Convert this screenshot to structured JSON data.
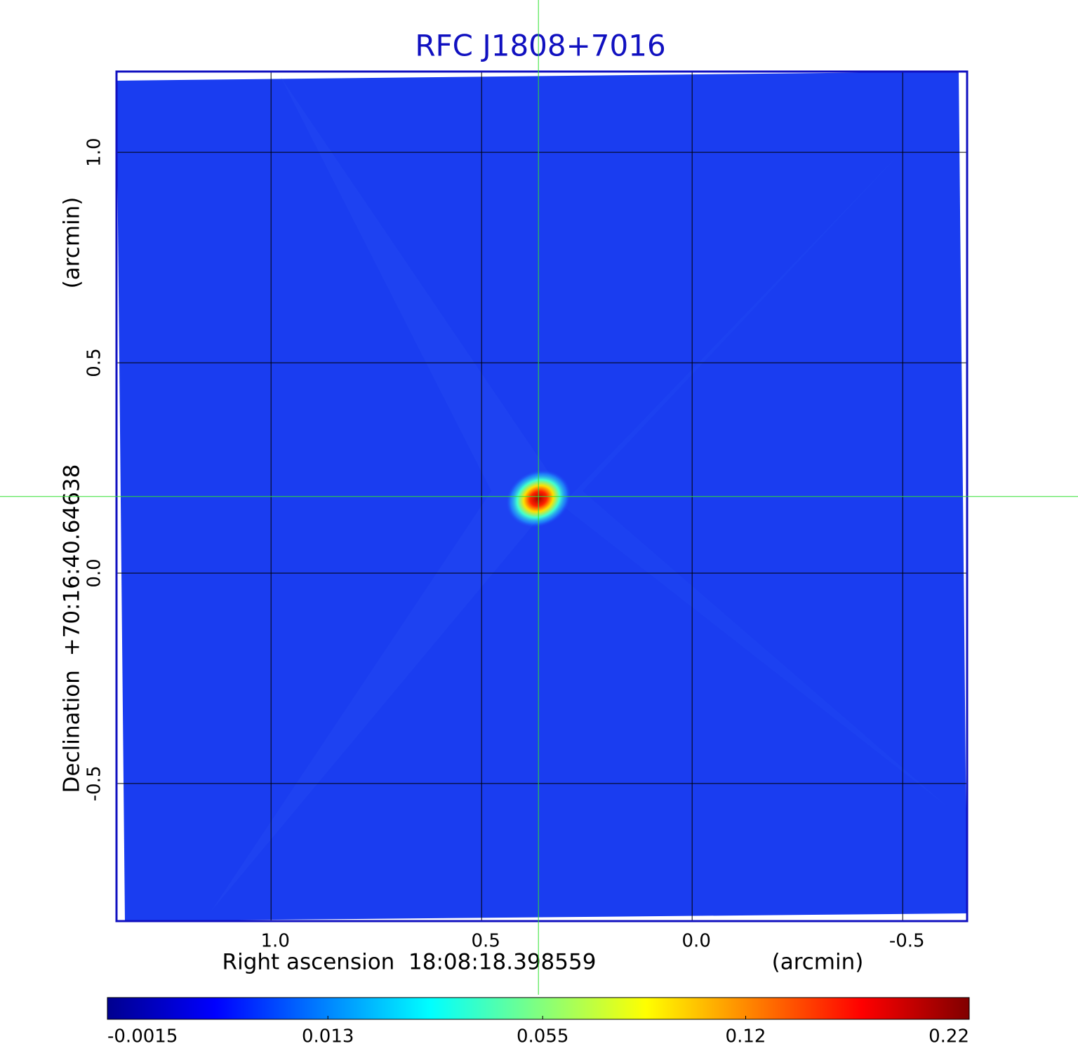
{
  "chart_data": {
    "type": "image",
    "title": "RFC J1808+7016",
    "xlabel": "Right ascension  18:08:18.398559",
    "xunit": "(arcmin)",
    "ylabel": "Declination  +70:16:40.64638",
    "yunit": "(arcmin)",
    "xlim": [
      1.367,
      -0.653
    ],
    "ylim": [
      -0.827,
      1.192
    ],
    "xticks": [
      {
        "value": 1,
        "label": "1.0"
      },
      0.5,
      {
        "value": 0,
        "label": "0.0"
      },
      -0.5
    ],
    "yticks": [
      {
        "value": 1,
        "label": "1.0"
      },
      0.5,
      {
        "value": 0,
        "label": "0.0"
      },
      -0.5
    ],
    "grid": true,
    "crosshair": {
      "x": 0.365,
      "y": 0.182
    },
    "colorbar": {
      "colormap": "jet",
      "scale": "sqrt",
      "lim": [
        -0.0015,
        0.22
      ],
      "ticks": [
        -0.0015,
        0.013,
        0.055,
        0.12,
        0.22
      ]
    }
  }
}
